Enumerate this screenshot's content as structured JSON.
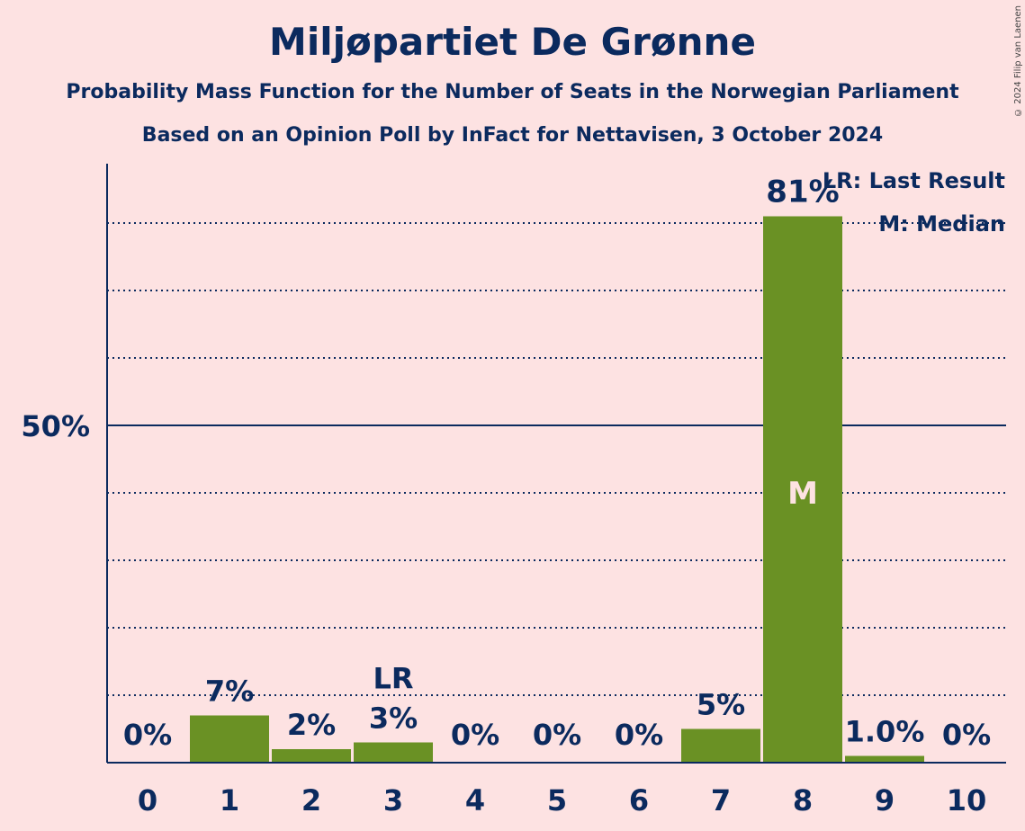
{
  "title": "Miljøpartiet De Grønne",
  "subtitle1": "Probability Mass Function for the Number of Seats in the Norwegian Parliament",
  "subtitle2": "Based on an Opinion Poll by InFact for Nettavisen, 3 October 2024",
  "copyright": "© 2024 Filip van Laenen",
  "colors": {
    "bar": "#6a9124",
    "text": "#0b2a5e",
    "background": "#fde2e2",
    "median_label": "#fde2e2"
  },
  "chart_data": {
    "type": "bar",
    "categories": [
      "0",
      "1",
      "2",
      "3",
      "4",
      "5",
      "6",
      "7",
      "8",
      "9",
      "10"
    ],
    "values": [
      0,
      7,
      2,
      3,
      0,
      0,
      0,
      5,
      81,
      1.0,
      0
    ],
    "value_labels": [
      "0%",
      "7%",
      "2%",
      "3%",
      "0%",
      "0%",
      "0%",
      "5%",
      "81%",
      "1.0%",
      "0%"
    ],
    "ylim": [
      0,
      90
    ],
    "gridlines": [
      10,
      20,
      30,
      40,
      60,
      70,
      80
    ],
    "major_gridline": 50,
    "y_tick_label": "50%",
    "last_result": {
      "category": "3",
      "label": "LR"
    },
    "median": {
      "category": "8",
      "label": "M"
    },
    "legend": {
      "position": "top-right",
      "items": [
        "LR: Last Result",
        "M: Median"
      ]
    }
  }
}
